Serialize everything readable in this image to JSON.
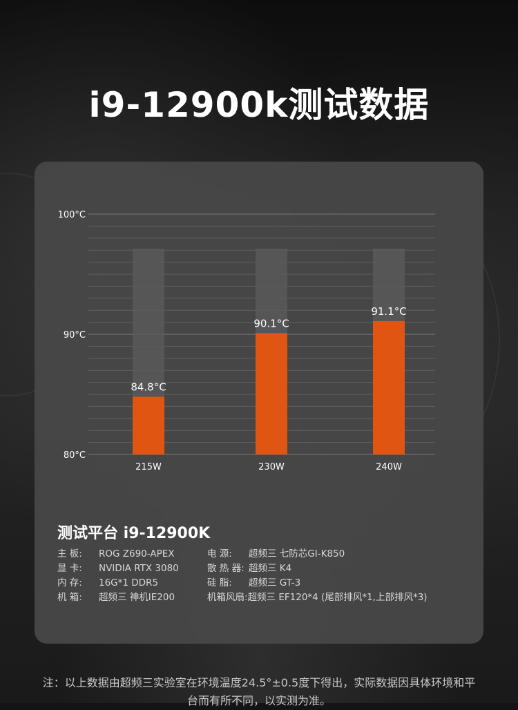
{
  "title": "i9-12900k测试数据",
  "chart_data": {
    "type": "bar",
    "categories": [
      "215W",
      "230W",
      "240W"
    ],
    "values": [
      84.8,
      90.1,
      91.1
    ],
    "value_labels": [
      "84.8°C",
      "90.1°C",
      "91.1°C"
    ],
    "ylim": [
      80,
      100
    ],
    "yticks": [
      80,
      90,
      100
    ],
    "ytick_labels": [
      "80°C",
      "90°C",
      "100°C"
    ],
    "grid": true,
    "bar_color": "#e05512",
    "bar_track_color": "#5a5a5a",
    "xlabel": "",
    "ylabel": ""
  },
  "specs": {
    "title": "测试平台 i9-12900K",
    "items": [
      {
        "label": "主 板:",
        "value": "ROG Z690-APEX"
      },
      {
        "label": "电 源:",
        "value": "超频三 七防芯GI-K850"
      },
      {
        "label": "显 卡:",
        "value": "NVIDIA RTX 3080"
      },
      {
        "label": "散 热 器:",
        "value": "超频三 K4"
      },
      {
        "label": "内 存:",
        "value": "16G*1 DDR5"
      },
      {
        "label": "硅 脂:",
        "value": "超频三 GT-3"
      },
      {
        "label": "机 箱:",
        "value": "超频三 神机IE200"
      },
      {
        "label": "机箱风扇:",
        "value": "超频三 EF120*4 (尾部排风*1,上部排风*3)"
      }
    ]
  },
  "note": "注：以上数据由超频三实验室在环境温度24.5°±0.5度下得出，实际数据因具体环境和平台而有所不同，以实测为准。",
  "colors": {
    "background": "#141414",
    "panel": "#484848",
    "accent": "#e05512"
  }
}
